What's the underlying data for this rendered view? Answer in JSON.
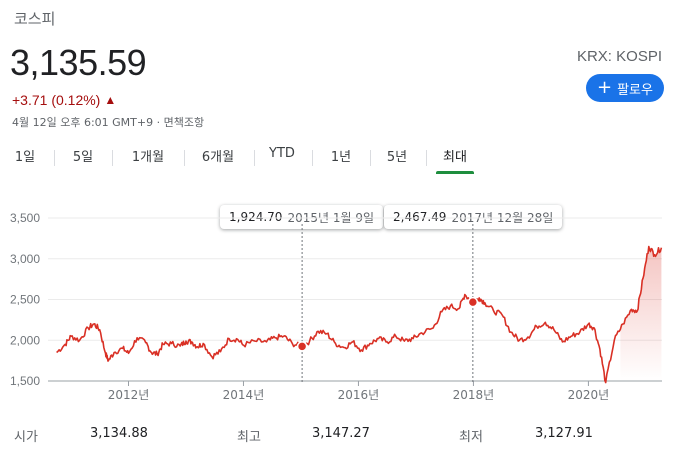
{
  "header": {
    "index_name": "코스피",
    "price": "3,135.59",
    "exchange": "KRX: KOSPI",
    "change": "+3.71 (0.12%)",
    "change_color": "#a50e0e",
    "change_icon": "arrow-up-icon",
    "timestamp": "4월 12일 오후 6:01 GMT+9 · 면책조항",
    "follow_label": "팔로우",
    "follow_color": "#1a73e8"
  },
  "tabs": [
    {
      "label": "1일",
      "active": false
    },
    {
      "label": "5일",
      "active": false
    },
    {
      "label": "1개월",
      "active": false
    },
    {
      "label": "6개월",
      "active": false
    },
    {
      "label": "YTD",
      "active": false
    },
    {
      "label": "1년",
      "active": false
    },
    {
      "label": "5년",
      "active": false
    },
    {
      "label": "최대",
      "active": true
    }
  ],
  "tooltips": [
    {
      "value": "1,924.70",
      "date": "2015년 1월 9일"
    },
    {
      "value": "2,467.49",
      "date": "2017년 12월 28일"
    }
  ],
  "stats": {
    "open_label": "시가",
    "open_value": "3,134.88",
    "high_label": "최고",
    "high_value": "3,147.27",
    "low_label": "최저",
    "low_value": "3,127.91"
  },
  "chart_data": {
    "type": "area",
    "title": "",
    "xlabel": "",
    "ylabel": "",
    "line_color": "#d93025",
    "ylim": [
      1500,
      3500
    ],
    "xlim": [
      2010.6,
      2021.28
    ],
    "y_ticks": [
      1500,
      2000,
      2500,
      3000,
      3500
    ],
    "y_tick_labels": [
      "1,500",
      "2,000",
      "2,500",
      "3,000",
      "3,500"
    ],
    "x_ticks": [
      2012,
      2014,
      2016,
      2018,
      2020
    ],
    "x_tick_labels": [
      "2012년",
      "2014년",
      "2016년",
      "2018년",
      "2020년"
    ],
    "grid": true,
    "markers": [
      {
        "x": 2015.02,
        "y": 1924.7
      },
      {
        "x": 2017.99,
        "y": 2467.49
      }
    ],
    "x": [
      2010.75,
      2010.9,
      2011.0,
      2011.15,
      2011.3,
      2011.4,
      2011.5,
      2011.6,
      2011.65,
      2011.75,
      2011.9,
      2012.0,
      2012.15,
      2012.3,
      2012.4,
      2012.5,
      2012.6,
      2012.75,
      2012.9,
      2013.0,
      2013.1,
      2013.2,
      2013.3,
      2013.45,
      2013.6,
      2013.75,
      2013.9,
      2014.0,
      2014.2,
      2014.4,
      2014.55,
      2014.7,
      2014.85,
      2015.02,
      2015.15,
      2015.3,
      2015.45,
      2015.6,
      2015.75,
      2015.9,
      2016.05,
      2016.2,
      2016.35,
      2016.5,
      2016.65,
      2016.8,
      2016.95,
      2017.1,
      2017.3,
      2017.45,
      2017.6,
      2017.75,
      2017.85,
      2017.99,
      2018.1,
      2018.2,
      2018.35,
      2018.5,
      2018.65,
      2018.8,
      2018.95,
      2019.1,
      2019.25,
      2019.4,
      2019.55,
      2019.7,
      2019.85,
      2020.0,
      2020.1,
      2020.2,
      2020.3,
      2020.45,
      2020.6,
      2020.75,
      2020.85,
      2020.95,
      2021.05,
      2021.15,
      2021.27
    ],
    "y": [
      1850,
      1950,
      2050,
      2000,
      2150,
      2200,
      2130,
      1840,
      1750,
      1850,
      1900,
      1840,
      2030,
      1970,
      1850,
      1830,
      1950,
      1960,
      1930,
      1990,
      1980,
      1920,
      1960,
      1800,
      1860,
      2020,
      2010,
      1940,
      1990,
      1980,
      2030,
      2050,
      1960,
      1924.7,
      1990,
      2110,
      2080,
      1960,
      1910,
      1980,
      1880,
      1960,
      2020,
      1980,
      2050,
      1990,
      2020,
      2090,
      2150,
      2350,
      2420,
      2390,
      2560,
      2467.49,
      2520,
      2460,
      2360,
      2310,
      2100,
      2000,
      2040,
      2170,
      2220,
      2130,
      1980,
      2050,
      2100,
      2200,
      2150,
      1890,
      1480,
      2000,
      2200,
      2380,
      2360,
      2760,
      3150,
      3050,
      3135.59
    ]
  }
}
